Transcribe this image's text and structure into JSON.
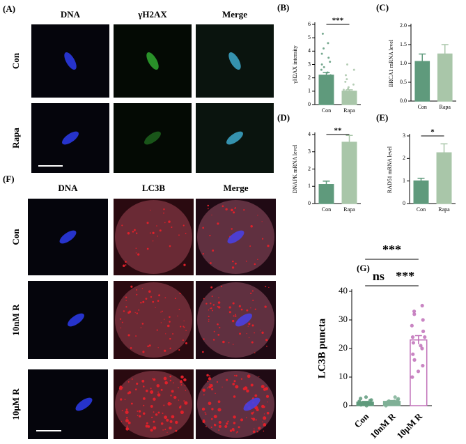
{
  "figure_a": {
    "panel": "(A)",
    "columns": [
      "DNA",
      "γH2AX",
      "Merge"
    ],
    "rows": [
      "Con",
      "Rapa"
    ]
  },
  "figure_f": {
    "panel": "(F)",
    "columns": [
      "DNA",
      "LC3B",
      "Merge"
    ],
    "rows": [
      "Con",
      "10nM R",
      "10μM R"
    ]
  },
  "chart_data": [
    {
      "type": "bar",
      "panel": "(B)",
      "y_label": "γH2AX intensity",
      "categories": [
        "Con",
        "Rapa"
      ],
      "values": [
        2.2,
        1.0
      ],
      "errors": [
        0.2,
        0.1
      ],
      "colors": [
        "#5f9a7c",
        "#a9c6a9"
      ],
      "edge_colors": [
        "#5f9a7c",
        "#a9c6a9"
      ],
      "points": [
        [
          5.3,
          4.6,
          4.2,
          3.8,
          3.5,
          3.2,
          3.0,
          2.8,
          2.6,
          2.4,
          2.2,
          2.0,
          1.8,
          1.6,
          1.4,
          1.2,
          1.0,
          0.8,
          0.5,
          0.2
        ],
        [
          3.0,
          2.6,
          2.2,
          1.9,
          1.7,
          1.5,
          1.3,
          1.2,
          1.1,
          1.0,
          0.9,
          0.8,
          0.7,
          0.6,
          0.5,
          0.4,
          0.3,
          0.2,
          0.1,
          0.05
        ]
      ],
      "comparisons": [
        {
          "label": "***",
          "pair": [
            "Con",
            "Rapa"
          ]
        }
      ],
      "ylim": [
        0,
        6
      ],
      "yticks": [
        0,
        1,
        2,
        3,
        4,
        5,
        6
      ]
    },
    {
      "type": "bar",
      "panel": "(C)",
      "y_label": "BRCA1 mRNA level",
      "categories": [
        "Con",
        "Rapa"
      ],
      "values": [
        1.05,
        1.25
      ],
      "errors": [
        0.2,
        0.25
      ],
      "colors": [
        "#5f9a7c",
        "#a9c6a9"
      ],
      "edge_colors": [
        "#5f9a7c",
        "#a9c6a9"
      ],
      "ylim": [
        0,
        2
      ],
      "yticks": [
        {
          "value": 0,
          "label": "0.0"
        },
        0.5,
        {
          "value": 1,
          "label": "1.0"
        },
        1.5,
        {
          "value": 2,
          "label": "2.0"
        }
      ]
    },
    {
      "type": "bar",
      "panel": "(D)",
      "y_label": "DNAPK mRNA level",
      "categories": [
        "Con",
        "Rapa"
      ],
      "values": [
        1.1,
        3.55
      ],
      "errors": [
        0.2,
        0.4
      ],
      "colors": [
        "#5f9a7c",
        "#a9c6a9"
      ],
      "edge_colors": [
        "#5f9a7c",
        "#a9c6a9"
      ],
      "comparisons": [
        {
          "label": "**",
          "pair": [
            "Con",
            "Rapa"
          ]
        }
      ],
      "ylim": [
        0,
        4
      ],
      "yticks": [
        0,
        1,
        2,
        3,
        4
      ]
    },
    {
      "type": "bar",
      "panel": "(E)",
      "y_label": "RAD51 mRNA level",
      "categories": [
        "Con",
        "Rapa"
      ],
      "values": [
        1.0,
        2.25
      ],
      "errors": [
        0.12,
        0.4
      ],
      "colors": [
        "#5f9a7c",
        "#a9c6a9"
      ],
      "edge_colors": [
        "#5f9a7c",
        "#a9c6a9"
      ],
      "comparisons": [
        {
          "label": "*",
          "pair": [
            "Con",
            "Rapa"
          ]
        }
      ],
      "ylim": [
        0,
        3
      ],
      "yticks": [
        0,
        1,
        2,
        3
      ]
    },
    {
      "type": "bar",
      "panel": "(G)",
      "y_label": "LC3B puncta",
      "categories": [
        "Con",
        "10nM R",
        "10μM R"
      ],
      "values": [
        1.2,
        1.5,
        23
      ],
      "errors": [
        0.3,
        0.3,
        1.5
      ],
      "colors": [
        "#5f9a7c",
        "#7fb096",
        "#ffffff"
      ],
      "edge_colors": [
        "#5f9a7c",
        "#7fb096",
        "#c070b8"
      ],
      "points": [
        [
          0,
          0.5,
          0.8,
          1,
          1,
          1.2,
          1.5,
          1.8,
          2,
          2.5,
          3,
          0.3
        ],
        [
          0,
          0.5,
          1,
          1,
          1.3,
          1.6,
          2,
          2,
          2.4,
          3,
          0.8,
          1.5
        ],
        [
          10,
          12,
          14,
          16,
          18,
          20,
          21,
          22,
          24,
          26,
          28,
          30,
          32,
          33,
          35,
          24
        ]
      ],
      "comparisons": [
        {
          "label": "ns",
          "pair": [
            "Con",
            "10nM R"
          ]
        },
        {
          "label": "***",
          "pair": [
            "10nM R",
            "10μM R"
          ]
        },
        {
          "label": "***",
          "pair": [
            "Con",
            "10μM R"
          ]
        }
      ],
      "ylim": [
        0,
        40
      ],
      "yticks": [
        0,
        10,
        20,
        30,
        40
      ]
    }
  ]
}
